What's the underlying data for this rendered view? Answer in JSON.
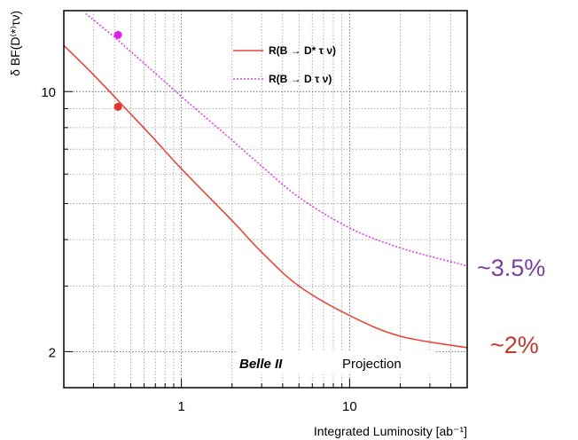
{
  "chart_data": {
    "type": "line",
    "title": "",
    "xlabel": "Integrated Luminosity [ab⁻¹]",
    "ylabel": "δ BF(D⁽*⁾τν)",
    "x_scale": "log",
    "y_scale": "log",
    "xlim": [
      0.2,
      50
    ],
    "ylim": [
      1.6,
      16.5
    ],
    "x_ticks": [
      {
        "value": 1,
        "label": "1"
      },
      {
        "value": 10,
        "label": "10"
      }
    ],
    "y_ticks": [
      {
        "value": 2,
        "label": "2"
      },
      {
        "value": 10,
        "label": "10"
      }
    ],
    "grid": true,
    "legend_position": "top-right",
    "series": [
      {
        "name": "R(B → D* τ ν)",
        "color": "#e8463a",
        "style": "solid",
        "x": [
          0.2,
          0.3,
          0.5,
          0.7,
          1,
          2,
          3,
          5,
          10,
          20,
          50
        ],
        "y": [
          13.3,
          11.1,
          8.7,
          7.4,
          6.2,
          4.5,
          3.7,
          3.0,
          2.5,
          2.2,
          2.05
        ],
        "marker": {
          "x": 0.42,
          "y": 9.1,
          "color": "#e8322a"
        }
      },
      {
        "name": "R(B → D τ ν)",
        "color": "#e040e8",
        "style": "dotted",
        "x": [
          0.27,
          0.4,
          0.5,
          0.7,
          1,
          2,
          3,
          5,
          10,
          20,
          50
        ],
        "y": [
          16.2,
          14.0,
          12.8,
          11.2,
          9.7,
          7.4,
          6.3,
          5.2,
          4.3,
          3.8,
          3.4
        ],
        "marker": {
          "x": 0.42,
          "y": 14.2,
          "color": "#e020e8"
        }
      }
    ],
    "annotations": [
      {
        "text_bold": "Belle II",
        "text": "Projection"
      }
    ]
  },
  "side_annotations": [
    {
      "text": "~3.5%",
      "color": "#7b3fa0"
    },
    {
      "text": "~2%",
      "color": "#c0392b"
    }
  ]
}
